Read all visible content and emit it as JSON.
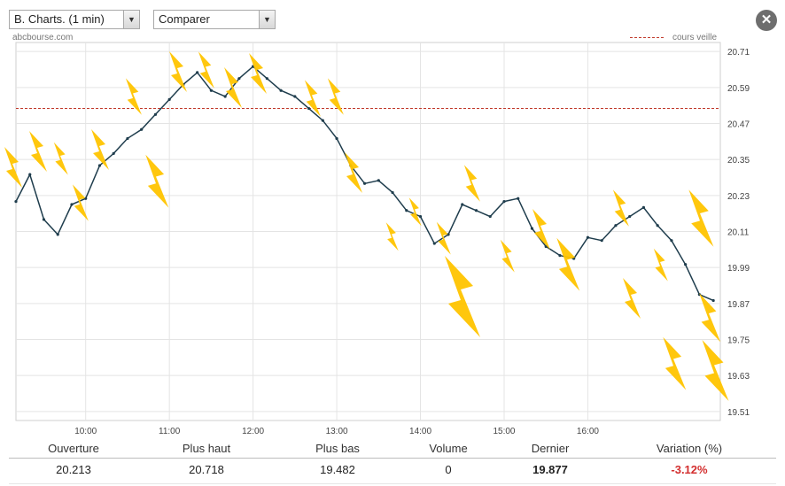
{
  "toolbar": {
    "chart_select": "B. Charts. (1 min)",
    "compare_select": "Comparer",
    "close_icon": "close-icon"
  },
  "source": "abcbourse.com",
  "legend": {
    "label": "cours veille",
    "color": "#c0392b"
  },
  "colors": {
    "bars": "#1f3d4d",
    "grid": "#e4e4e4",
    "bolt": "#ffc400",
    "negative": "#d32f2f"
  },
  "chart_data": {
    "type": "line",
    "title": "",
    "xlabel": "",
    "ylabel": "",
    "x_ticks": [
      "10:00",
      "11:00",
      "12:00",
      "13:00",
      "14:00",
      "15:00",
      "16:00"
    ],
    "y_ticks": [
      "20.71",
      "20.59",
      "20.47",
      "20.35",
      "20.23",
      "20.11",
      "19.99",
      "19.87",
      "19.75",
      "19.63",
      "19.51"
    ],
    "xlim": [
      "09:10",
      "17:35"
    ],
    "ylim": [
      19.48,
      20.74
    ],
    "previous_close": 20.52,
    "grid": true,
    "legend_position": "top-right",
    "series": [
      {
        "x": [
          "09:10",
          "09:20",
          "09:30",
          "09:40",
          "09:50",
          "10:00",
          "10:10",
          "10:20",
          "10:30",
          "10:40",
          "10:50",
          "11:00",
          "11:10",
          "11:20",
          "11:30",
          "11:40",
          "11:50",
          "12:00",
          "12:10",
          "12:20",
          "12:30",
          "12:40",
          "12:50",
          "13:00",
          "13:10",
          "13:20",
          "13:30",
          "13:40",
          "13:50",
          "14:00",
          "14:10",
          "14:20",
          "14:30",
          "14:40",
          "14:50",
          "15:00",
          "15:10",
          "15:20",
          "15:30",
          "15:40",
          "15:50",
          "16:00",
          "16:10",
          "16:20",
          "16:30",
          "16:40",
          "16:50",
          "17:00",
          "17:10",
          "17:20",
          "17:30"
        ],
        "y": [
          20.21,
          20.3,
          20.15,
          20.1,
          20.2,
          20.22,
          20.33,
          20.37,
          20.42,
          20.45,
          20.5,
          20.55,
          20.6,
          20.64,
          20.58,
          20.56,
          20.62,
          20.66,
          20.62,
          20.58,
          20.56,
          20.52,
          20.48,
          20.42,
          20.33,
          20.27,
          20.28,
          20.24,
          20.18,
          20.16,
          20.07,
          20.1,
          20.2,
          20.18,
          20.16,
          20.21,
          20.22,
          20.12,
          20.06,
          20.03,
          20.02,
          20.09,
          20.08,
          20.13,
          20.16,
          20.19,
          20.13,
          20.08,
          20.0,
          19.9,
          19.88
        ]
      }
    ]
  },
  "stats": {
    "headers": [
      "Ouverture",
      "Plus haut",
      "Plus bas",
      "Volume",
      "Dernier",
      "Variation (%)"
    ],
    "values": [
      "20.213",
      "20.718",
      "19.482",
      "0",
      "19.877",
      "-3.12%"
    ]
  }
}
